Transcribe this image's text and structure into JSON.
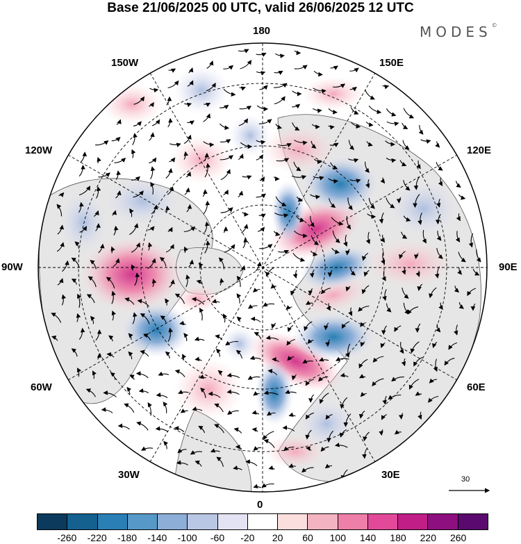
{
  "title": "Base 21/06/2025 00 UTC, valid 26/06/2025 12 UTC",
  "brand": "MODES",
  "brand_mark": "©",
  "longitude_labels": {
    "top": "180",
    "bottom": "0",
    "left": "90W",
    "right": "90E",
    "upper_left_1": "150W",
    "upper_left_2": "120W",
    "upper_right_1": "150E",
    "upper_right_2": "120E",
    "lower_left_1": "60W",
    "lower_left_2": "30W",
    "lower_right_1": "60E",
    "lower_right_2": "30E"
  },
  "vector_scale": {
    "value": "30"
  },
  "colorbar": {
    "colors": [
      "#0b3a5c",
      "#14608f",
      "#2a7fb5",
      "#5699c8",
      "#8caed7",
      "#bac7e4",
      "#e3e3f3",
      "#ffffff",
      "#fbdede",
      "#f4b3c1",
      "#ee7fa8",
      "#e24a99",
      "#c21e87",
      "#8e0f7f",
      "#5a0a6e"
    ],
    "tick_labels": [
      "-260",
      "-220",
      "-180",
      "-140",
      "-100",
      "-60",
      "-20",
      "20",
      "60",
      "100",
      "140",
      "180",
      "220",
      "260"
    ]
  },
  "colors": {
    "land_shade": "#e6e6e6",
    "ocean": "#ffffff",
    "frame": "#000000"
  }
}
